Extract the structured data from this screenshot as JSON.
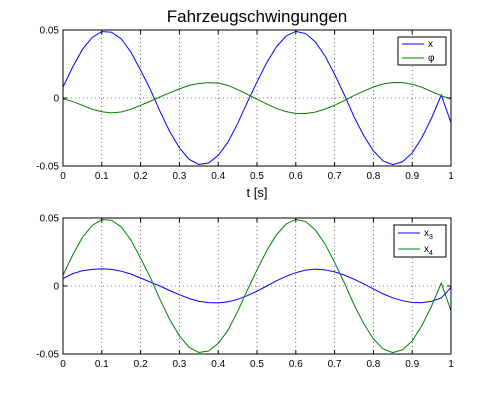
{
  "chart_data": [
    {
      "type": "line",
      "title": "Fahrzeugschwingungen",
      "xlabel": "t [s]",
      "ylabel": "",
      "xlim": [
        0,
        1
      ],
      "ylim": [
        -0.05,
        0.05
      ],
      "xticks": [
        0,
        0.1,
        0.2,
        0.3,
        0.4,
        0.5,
        0.6,
        0.7,
        0.8,
        0.9,
        1
      ],
      "xtick_labels": [
        "0",
        "0.1",
        "0.2",
        "0.3",
        "0.4",
        "0.5",
        "0.6",
        "0.7",
        "0.8",
        "0.9",
        "1"
      ],
      "yticks": [
        -0.05,
        0,
        0.05
      ],
      "ytick_labels": [
        "-0.05",
        "0",
        "0.05"
      ],
      "grid": true,
      "legend": "top-right",
      "x": [
        0,
        0.025,
        0.05,
        0.075,
        0.1,
        0.125,
        0.15,
        0.175,
        0.2,
        0.225,
        0.25,
        0.275,
        0.3,
        0.325,
        0.35,
        0.375,
        0.4,
        0.425,
        0.45,
        0.475,
        0.5,
        0.525,
        0.55,
        0.575,
        0.6,
        0.625,
        0.65,
        0.675,
        0.7,
        0.725,
        0.75,
        0.775,
        0.8,
        0.825,
        0.85,
        0.875,
        0.9,
        0.925,
        0.95,
        0.975,
        1
      ],
      "series": [
        {
          "name": "x",
          "color": "#0000ff",
          "values": [
            0.008,
            0.0228,
            0.0357,
            0.0445,
            0.0488,
            0.0484,
            0.0435,
            0.0338,
            0.0205,
            0.0063,
            -0.0098,
            -0.0246,
            -0.0366,
            -0.0451,
            -0.0489,
            -0.0478,
            -0.0422,
            -0.0326,
            -0.0188,
            -0.0032,
            0.0118,
            0.0259,
            0.0376,
            0.0456,
            0.049,
            0.0474,
            0.0414,
            0.0311,
            0.0174,
            0.0024,
            -0.0137,
            -0.0276,
            -0.0389,
            -0.0463,
            -0.049,
            -0.0469,
            -0.0404,
            -0.0291,
            -0.0147,
            0.0021,
            -0.0182
          ]
        },
        {
          "name": "φ",
          "color": "#008000",
          "values": [
            -0.0005,
            -0.0026,
            -0.0054,
            -0.0083,
            -0.0101,
            -0.0109,
            -0.0103,
            -0.0083,
            -0.0054,
            -0.0024,
            0.0008,
            0.0038,
            0.0067,
            0.0093,
            0.0107,
            0.0113,
            0.0109,
            0.0093,
            0.0062,
            0.0027,
            -0.0009,
            -0.0044,
            -0.0077,
            -0.01,
            -0.0113,
            -0.0114,
            -0.0104,
            -0.0082,
            -0.0053,
            -0.0019,
            0.0018,
            0.005,
            0.0081,
            0.0103,
            0.0114,
            0.0113,
            0.0101,
            0.0079,
            0.0047,
            0.0017,
            -0.0008
          ]
        }
      ]
    },
    {
      "type": "line",
      "title": "",
      "xlabel": "",
      "ylabel": "",
      "xlim": [
        0,
        1
      ],
      "ylim": [
        -0.05,
        0.05
      ],
      "xticks": [
        0,
        0.1,
        0.2,
        0.3,
        0.4,
        0.5,
        0.6,
        0.7,
        0.8,
        0.9,
        1
      ],
      "xtick_labels": [
        "0",
        "0.1",
        "0.2",
        "0.3",
        "0.4",
        "0.5",
        "0.6",
        "0.7",
        "0.8",
        "0.9",
        "1"
      ],
      "yticks": [
        -0.05,
        0,
        0.05
      ],
      "ytick_labels": [
        "-0.05",
        "0",
        "0.05"
      ],
      "grid": true,
      "legend": "top-right",
      "x": [
        0,
        0.025,
        0.05,
        0.075,
        0.1,
        0.125,
        0.15,
        0.175,
        0.2,
        0.225,
        0.25,
        0.275,
        0.3,
        0.325,
        0.35,
        0.375,
        0.4,
        0.425,
        0.45,
        0.475,
        0.5,
        0.525,
        0.55,
        0.575,
        0.6,
        0.625,
        0.65,
        0.675,
        0.7,
        0.725,
        0.75,
        0.775,
        0.8,
        0.825,
        0.85,
        0.875,
        0.9,
        0.925,
        0.95,
        0.975,
        1
      ],
      "series": [
        {
          "name": "x",
          "name_sub": "3",
          "color": "#0000ff",
          "values": [
            0.0055,
            0.0091,
            0.0112,
            0.0122,
            0.0126,
            0.0122,
            0.0109,
            0.0088,
            0.0059,
            0.0029,
            0.0,
            -0.0034,
            -0.0064,
            -0.0092,
            -0.0112,
            -0.0122,
            -0.0124,
            -0.0117,
            -0.0098,
            -0.0071,
            -0.0038,
            0.0,
            0.0038,
            0.0071,
            0.0098,
            0.0117,
            0.0124,
            0.0119,
            0.0104,
            0.008,
            0.005,
            0.0016,
            -0.0022,
            -0.0058,
            -0.0087,
            -0.0108,
            -0.0121,
            -0.0123,
            -0.0112,
            -0.0088,
            -0.001
          ]
        },
        {
          "name": "x",
          "name_sub": "4",
          "color": "#008000",
          "values": [
            0.008,
            0.0228,
            0.0357,
            0.0445,
            0.0488,
            0.0484,
            0.0435,
            0.0338,
            0.0205,
            0.0063,
            -0.0098,
            -0.0246,
            -0.0366,
            -0.0451,
            -0.0489,
            -0.0478,
            -0.0422,
            -0.0326,
            -0.0188,
            -0.0032,
            0.0118,
            0.0259,
            0.0376,
            0.0456,
            0.049,
            0.0474,
            0.0414,
            0.0311,
            0.0174,
            0.0024,
            -0.0137,
            -0.0276,
            -0.0389,
            -0.0463,
            -0.049,
            -0.0469,
            -0.0404,
            -0.0291,
            -0.0147,
            0.0021,
            -0.0182
          ]
        }
      ]
    }
  ]
}
